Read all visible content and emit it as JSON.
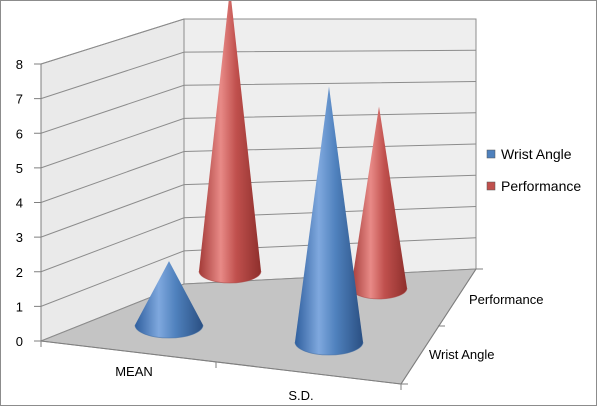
{
  "chart_data": {
    "type": "bar",
    "subtype": "3d-cone",
    "categories": [
      "MEAN",
      "S.D."
    ],
    "series": [
      {
        "name": "Wrist Angle",
        "values": [
          1.9,
          7.6
        ],
        "color": "#4f81bd"
      },
      {
        "name": "Performance",
        "values": [
          8.4,
          5.4
        ],
        "color": "#c0504d"
      }
    ],
    "depth_labels": [
      "Performance",
      "Wrist Angle"
    ],
    "y_ticks": [
      "0",
      "1",
      "2",
      "3",
      "4",
      "5",
      "6",
      "7",
      "8"
    ],
    "ylim": [
      0,
      8
    ],
    "grid": true,
    "legend_position": "right"
  }
}
